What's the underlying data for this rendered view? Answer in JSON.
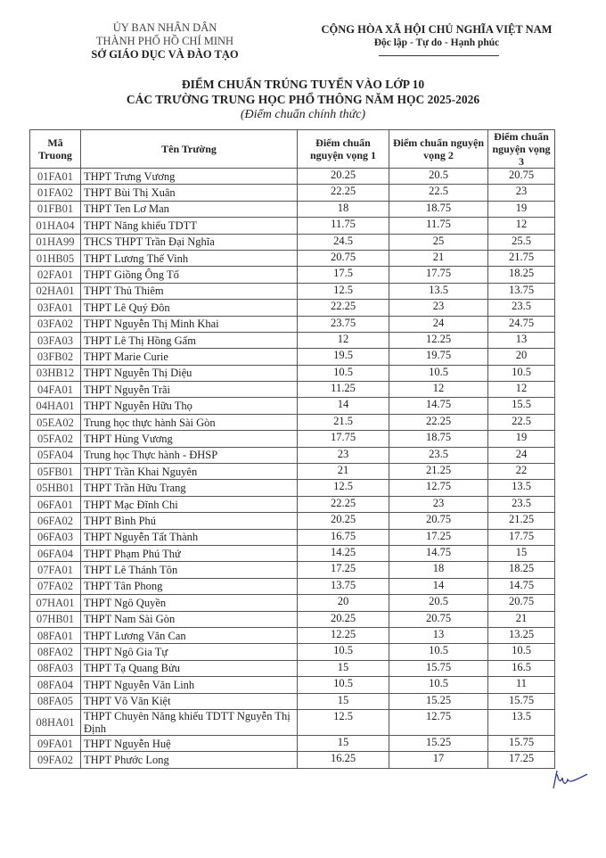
{
  "header_left": {
    "line1": "ỦY BAN NHÂN DÂN",
    "line2": "THÀNH PHỐ HỒ CHÍ MINH",
    "line3": "SỞ GIÁO DỤC VÀ ĐÀO TẠO"
  },
  "header_right": {
    "line1": "CỘNG HÒA XÃ HỘI CHỦ NGHĨA VIỆT NAM",
    "line2": "Độc lập - Tự do - Hạnh phúc"
  },
  "title": {
    "line1": "ĐIỂM CHUẨN TRÚNG TUYỂN VÀO LỚP 10",
    "line2": "CÁC TRƯỜNG TRUNG HỌC PHỔ THÔNG NĂM HỌC 2025-2026",
    "subtitle": "(Điểm chuẩn chính thức)"
  },
  "table": {
    "columns": [
      "Mã Truong",
      "Tên Trường",
      "Điểm chuẩn nguyện vọng 1",
      "Điểm chuẩn nguyện vọng 2",
      "Điểm chuẩn nguyện vọng 3"
    ],
    "rows": [
      [
        "01FA01",
        "THPT Trưng Vương",
        "20.25",
        "20.5",
        "20.75"
      ],
      [
        "01FA02",
        "THPT Bùi Thị Xuân",
        "22.25",
        "22.5",
        "23"
      ],
      [
        "01FB01",
        "THPT Ten Lơ Man",
        "18",
        "18.75",
        "19"
      ],
      [
        "01HA04",
        "THPT Năng khiếu TDTT",
        "11.75",
        "11.75",
        "12"
      ],
      [
        "01HA99",
        "THCS THPT Trần Đại Nghĩa",
        "24.5",
        "25",
        "25.5"
      ],
      [
        "01HB05",
        "THPT Lương Thế Vinh",
        "20.75",
        "21",
        "21.75"
      ],
      [
        "02FA01",
        "THPT Giồng Ông Tố",
        "17.5",
        "17.75",
        "18.25"
      ],
      [
        "02HA01",
        "THPT Thủ Thiêm",
        "12.5",
        "13.5",
        "13.75"
      ],
      [
        "03FA01",
        "THPT Lê Quý Đôn",
        "22.25",
        "23",
        "23.5"
      ],
      [
        "03FA02",
        "THPT Nguyễn Thị Minh Khai",
        "23.75",
        "24",
        "24.75"
      ],
      [
        "03FA03",
        "THPT Lê Thị Hồng Gấm",
        "12",
        "12.25",
        "13"
      ],
      [
        "03FB02",
        "THPT Marie Curie",
        "19.5",
        "19.75",
        "20"
      ],
      [
        "03HB12",
        "THPT Nguyễn Thị Diệu",
        "10.5",
        "10.5",
        "10.5"
      ],
      [
        "04FA01",
        "THPT Nguyễn Trãi",
        "11.25",
        "12",
        "12"
      ],
      [
        "04HA01",
        "THPT Nguyễn Hữu Thọ",
        "14",
        "14.75",
        "15.5"
      ],
      [
        "05EA02",
        "Trung học thực hành Sài Gòn",
        "21.5",
        "22.25",
        "22.5"
      ],
      [
        "05FA02",
        "THPT Hùng Vương",
        "17.75",
        "18.75",
        "19"
      ],
      [
        "05FA04",
        "Trung học Thực hành - ĐHSP",
        "23",
        "23.5",
        "24"
      ],
      [
        "05FB01",
        "THPT Trần Khai Nguyên",
        "21",
        "21.25",
        "22"
      ],
      [
        "05HB01",
        "THPT Trần Hữu Trang",
        "12.5",
        "12.75",
        "13.5"
      ],
      [
        "06FA01",
        "THPT Mạc Đĩnh Chi",
        "22.25",
        "23",
        "23.5"
      ],
      [
        "06FA02",
        "THPT Bình Phú",
        "20.25",
        "20.75",
        "21.25"
      ],
      [
        "06FA03",
        "THPT Nguyễn Tất Thành",
        "16.75",
        "17.25",
        "17.75"
      ],
      [
        "06FA04",
        "THPT Phạm Phú Thứ",
        "14.25",
        "14.75",
        "15"
      ],
      [
        "07FA01",
        "THPT Lê Thánh Tôn",
        "17.25",
        "18",
        "18.25"
      ],
      [
        "07FA02",
        "THPT Tân Phong",
        "13.75",
        "14",
        "14.75"
      ],
      [
        "07HA01",
        "THPT Ngô Quyền",
        "20",
        "20.5",
        "20.75"
      ],
      [
        "07HB01",
        "THPT Nam Sài Gòn",
        "20.25",
        "20.75",
        "21"
      ],
      [
        "08FA01",
        "THPT Lương Văn Can",
        "12.25",
        "13",
        "13.25"
      ],
      [
        "08FA02",
        "THPT Ngô Gia Tự",
        "10.5",
        "10.5",
        "10.5"
      ],
      [
        "08FA03",
        "THPT Tạ Quang Bửu",
        "15",
        "15.75",
        "16.5"
      ],
      [
        "08FA04",
        "THPT Nguyễn Văn Linh",
        "10.5",
        "10.5",
        "11"
      ],
      [
        "08FA05",
        "THPT Võ Văn Kiệt",
        "15",
        "15.25",
        "15.75"
      ],
      [
        "08HA01",
        "THPT Chuyên Năng khiếu TDTT Nguyễn Thị Định",
        "12.5",
        "12.75",
        "13.5"
      ],
      [
        "09FA01",
        "THPT Nguyễn Huệ",
        "15",
        "15.25",
        "15.75"
      ],
      [
        "09FA02",
        "THPT Phước Long",
        "16.25",
        "17",
        "17.25"
      ]
    ]
  },
  "signature_color": "#2b3a9a"
}
